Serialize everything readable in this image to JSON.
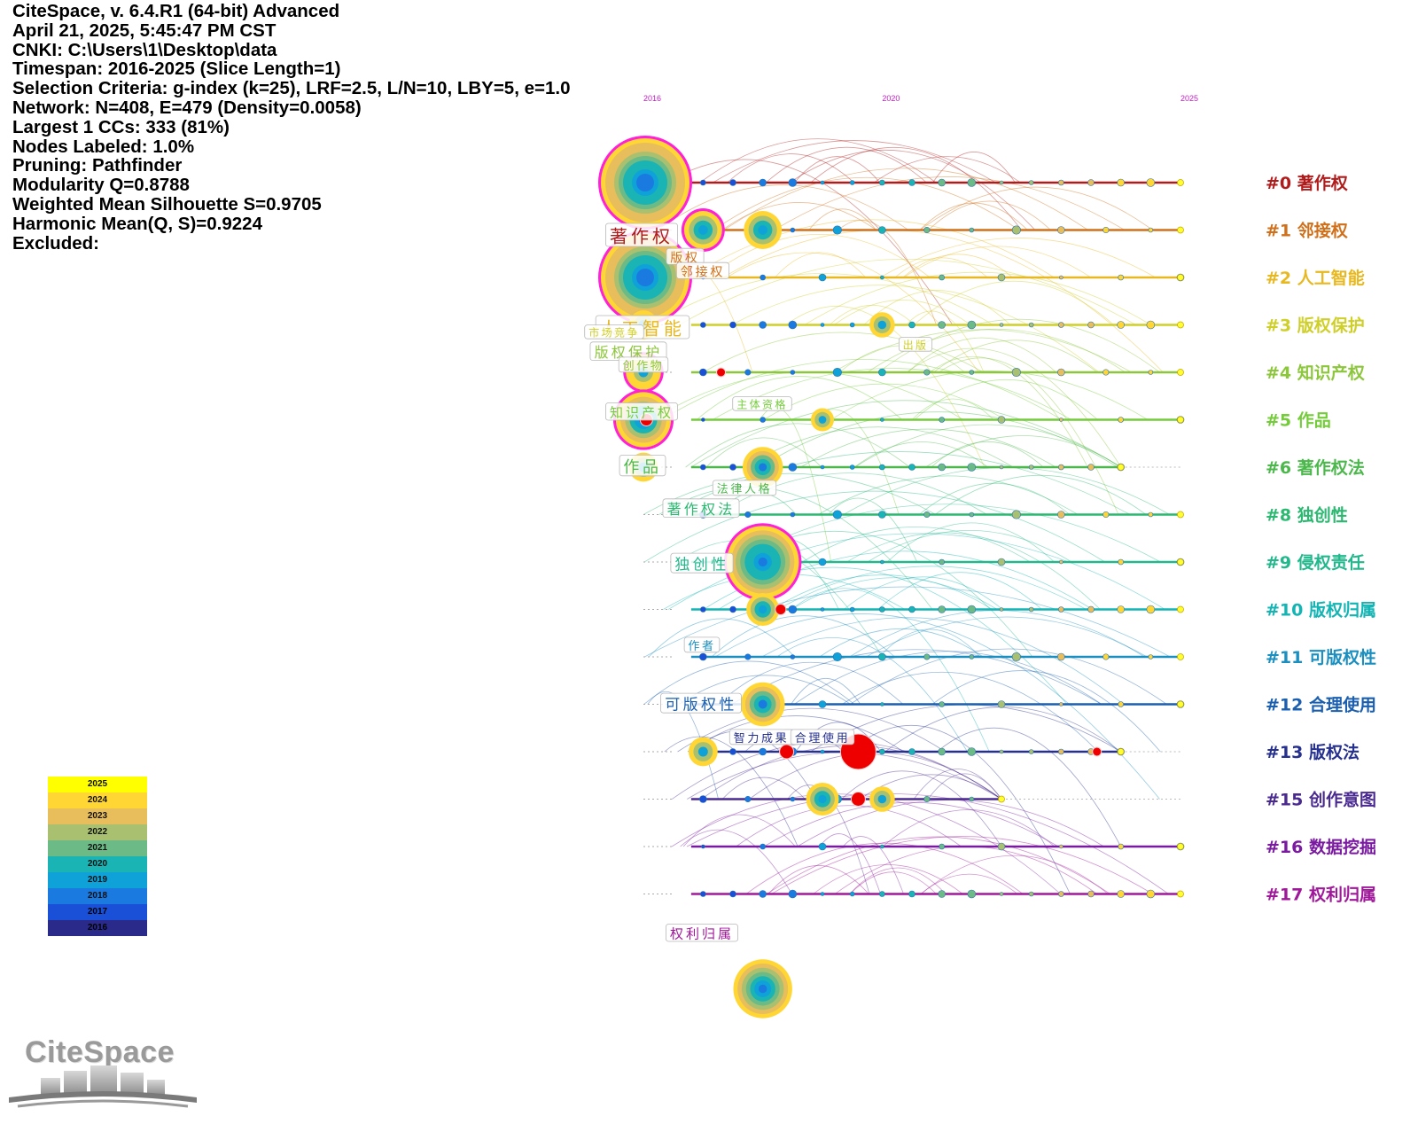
{
  "info_lines": [
    "CiteSpace, v. 6.4.R1 (64-bit) Advanced",
    "April 21, 2025, 5:45:47 PM CST",
    "CNKI: C:\\Users\\1\\Desktop\\data",
    "Timespan: 2016-2025 (Slice Length=1)",
    "Selection Criteria: g-index (k=25), LRF=2.5, L/N=10, LBY=5, e=1.0",
    "Network: N=408, E=479 (Density=0.0058)",
    "Largest 1 CCs: 333 (81%)",
    "Nodes Labeled: 1.0%",
    "Pruning: Pathfinder",
    "Modularity Q=0.8788",
    "Weighted Mean Silhouette S=0.9705",
    "Harmonic Mean(Q, S)=0.9224",
    "Excluded:"
  ],
  "year_ticks": [
    "2016",
    "2020",
    "2025"
  ],
  "clusters": [
    {
      "id": "#0",
      "label": "著作权",
      "color": "#b01c1c",
      "end": 2025
    },
    {
      "id": "#1",
      "label": "邻接权",
      "color": "#d0701a",
      "end": 2025
    },
    {
      "id": "#2",
      "label": "人工智能",
      "color": "#e8b820",
      "end": 2025
    },
    {
      "id": "#3",
      "label": "版权保护",
      "color": "#cfcf2a",
      "end": 2025
    },
    {
      "id": "#4",
      "label": "知识产权",
      "color": "#8cc63a",
      "end": 2025
    },
    {
      "id": "#5",
      "label": "作品",
      "color": "#74cc3a",
      "end": 2025
    },
    {
      "id": "#6",
      "label": "著作权法",
      "color": "#4cb84c",
      "end": 2024
    },
    {
      "id": "#8",
      "label": "独创性",
      "color": "#2bb870",
      "end": 2025
    },
    {
      "id": "#9",
      "label": "侵权责任",
      "color": "#22b88c",
      "end": 2025
    },
    {
      "id": "#10",
      "label": "版权归属",
      "color": "#12b4b4",
      "end": 2025
    },
    {
      "id": "#11",
      "label": "可版权性",
      "color": "#1a8fc0",
      "end": 2025
    },
    {
      "id": "#12",
      "label": "合理使用",
      "color": "#1a5fb0",
      "end": 2025
    },
    {
      "id": "#13",
      "label": "版权法",
      "color": "#26308f",
      "end": 2024
    },
    {
      "id": "#15",
      "label": "创作意图",
      "color": "#4a2a90",
      "end": 2022
    },
    {
      "id": "#16",
      "label": "数据挖掘",
      "color": "#7a1aa0",
      "end": 2025
    },
    {
      "id": "#17",
      "label": "权利归属",
      "color": "#a0189a",
      "end": 2025
    }
  ],
  "nodes": [
    {
      "cluster": 0,
      "year": 2016,
      "size": 1.0,
      "label": "著作权",
      "burst": true
    },
    {
      "cluster": 1,
      "year": 2017,
      "size": 0.32,
      "label": "版权",
      "burst": true
    },
    {
      "cluster": 1,
      "year": 2018,
      "size": 0.32,
      "label": "邻接权",
      "burst": false
    },
    {
      "cluster": 2,
      "year": 2016,
      "size": 1.0,
      "label": "人工智能",
      "burst": true
    },
    {
      "cluster": 3,
      "year": 2016,
      "size": 0.2,
      "label": "市场竞争",
      "burst": false
    },
    {
      "cluster": 3,
      "year": 2020,
      "size": 0.15,
      "label": "出版",
      "burst": false
    },
    {
      "cluster": 4,
      "year": 2016,
      "size": 0.28,
      "label": "版权保护",
      "burst": true
    },
    {
      "cluster": 4,
      "year": 2016,
      "size": 0.2,
      "label": "创作物",
      "burst": false
    },
    {
      "cluster": 5,
      "year": 2016,
      "size": 0.55,
      "label": "知识产权",
      "burst": true
    },
    {
      "cluster": 5,
      "year": 2019,
      "size": 0.12,
      "label": "主体资格",
      "burst": false
    },
    {
      "cluster": 6,
      "year": 2016,
      "size": 0.2,
      "label": "作品",
      "burst": false
    },
    {
      "cluster": 6,
      "year": 2018,
      "size": 0.35,
      "label": "法律人格",
      "burst": false
    },
    {
      "cluster": 8,
      "year": 2018,
      "size": 0.78,
      "label": "著作权法",
      "burst": true
    },
    {
      "cluster": 9,
      "year": 2018,
      "size": 0.25,
      "label": "独创性",
      "burst": false
    },
    {
      "cluster": 11,
      "year": 2018,
      "size": 0.4,
      "label": "作者",
      "burst": false
    },
    {
      "cluster": 12,
      "year": 2017,
      "size": 0.2,
      "label": "可版权性",
      "burst": false
    },
    {
      "cluster": 13,
      "year": 2019,
      "size": 0.25,
      "label": "智力成果",
      "burst": false
    },
    {
      "cluster": 13,
      "year": 2020,
      "size": 0.15,
      "label": "合理使用",
      "burst": false
    },
    {
      "cluster": 17,
      "year": 2018,
      "size": 0.6,
      "label": "权利归属",
      "burst": false
    }
  ],
  "legend_years": [
    "2025",
    "2024",
    "2023",
    "2022",
    "2021",
    "2020",
    "2019",
    "2018",
    "2017",
    "2016"
  ],
  "legend_colors": [
    "#ffff00",
    "#ffd633",
    "#e8bd5c",
    "#a8c070",
    "#6cba86",
    "#1ab4b4",
    "#0fa2d8",
    "#1a7ae0",
    "#1a50d8",
    "#2a2a8a"
  ],
  "logo_text": "CiteSpace"
}
